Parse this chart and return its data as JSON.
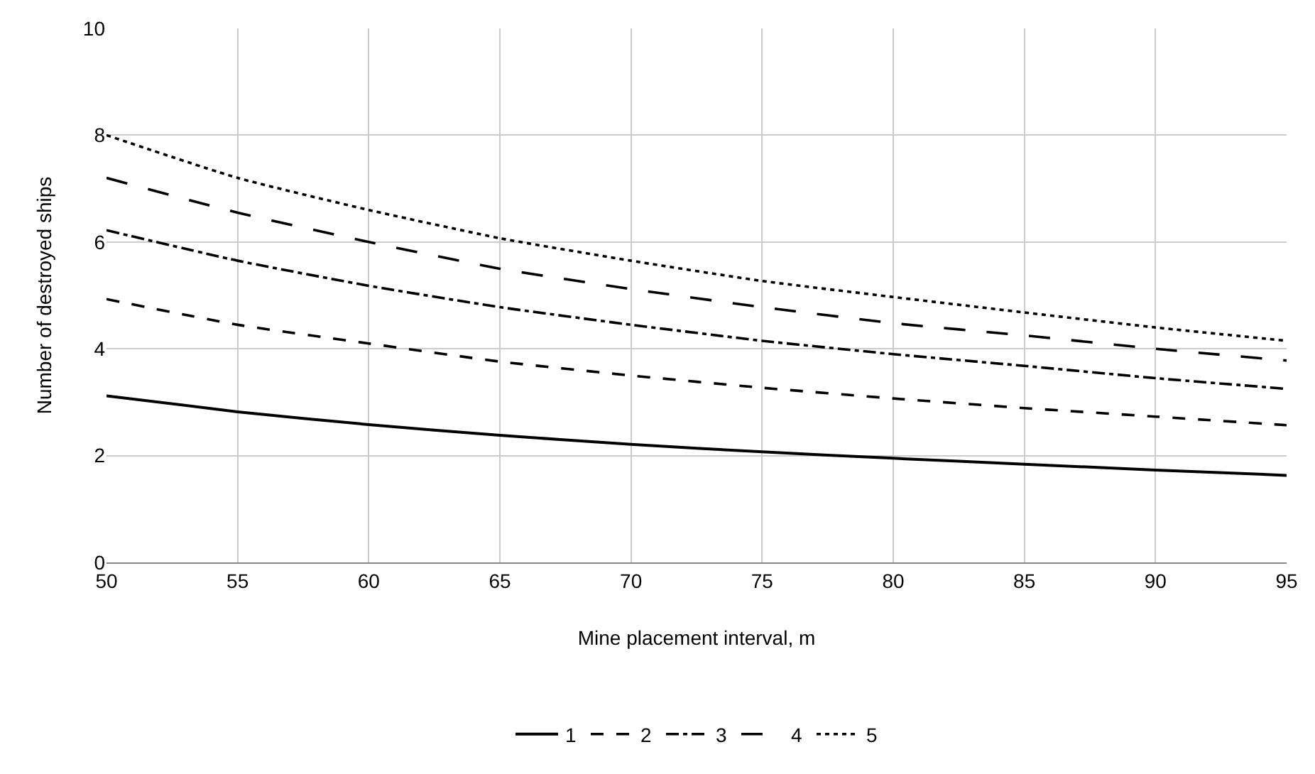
{
  "chart_data": {
    "type": "line",
    "xlabel": "Mine placement interval, m",
    "ylabel": "Number of destroyed ships",
    "x": [
      50,
      55,
      60,
      65,
      70,
      75,
      80,
      85,
      90,
      95
    ],
    "series": [
      {
        "name": "1",
        "color": "#000000",
        "line_style": "solid",
        "values": [
          3.12,
          2.82,
          2.58,
          2.38,
          2.21,
          2.07,
          1.95,
          1.84,
          1.73,
          1.63
        ]
      },
      {
        "name": "2",
        "color": "#000000",
        "line_style": "dashed",
        "values": [
          4.93,
          4.45,
          4.1,
          3.76,
          3.5,
          3.27,
          3.07,
          2.89,
          2.73,
          2.57
        ]
      },
      {
        "name": "3",
        "color": "#000000",
        "line_style": "dashdot",
        "values": [
          6.22,
          5.65,
          5.18,
          4.78,
          4.45,
          4.15,
          3.9,
          3.68,
          3.45,
          3.25
        ]
      },
      {
        "name": "4",
        "color": "#000000",
        "line_style": "longdash",
        "values": [
          7.2,
          6.55,
          6.0,
          5.5,
          5.12,
          4.78,
          4.48,
          4.25,
          4.0,
          3.78
        ]
      },
      {
        "name": "5",
        "color": "#000000",
        "line_style": "dotted",
        "values": [
          8.0,
          7.2,
          6.6,
          6.07,
          5.65,
          5.27,
          4.97,
          4.68,
          4.4,
          4.15
        ]
      }
    ],
    "xlim": [
      50,
      95
    ],
    "xticks": [
      50,
      55,
      60,
      65,
      70,
      75,
      80,
      85,
      90,
      95
    ],
    "ylim": [
      0,
      10
    ],
    "yticks": [
      0,
      2,
      4,
      6,
      8,
      10
    ],
    "grid": true,
    "legend": "bottom",
    "marker": "none"
  }
}
